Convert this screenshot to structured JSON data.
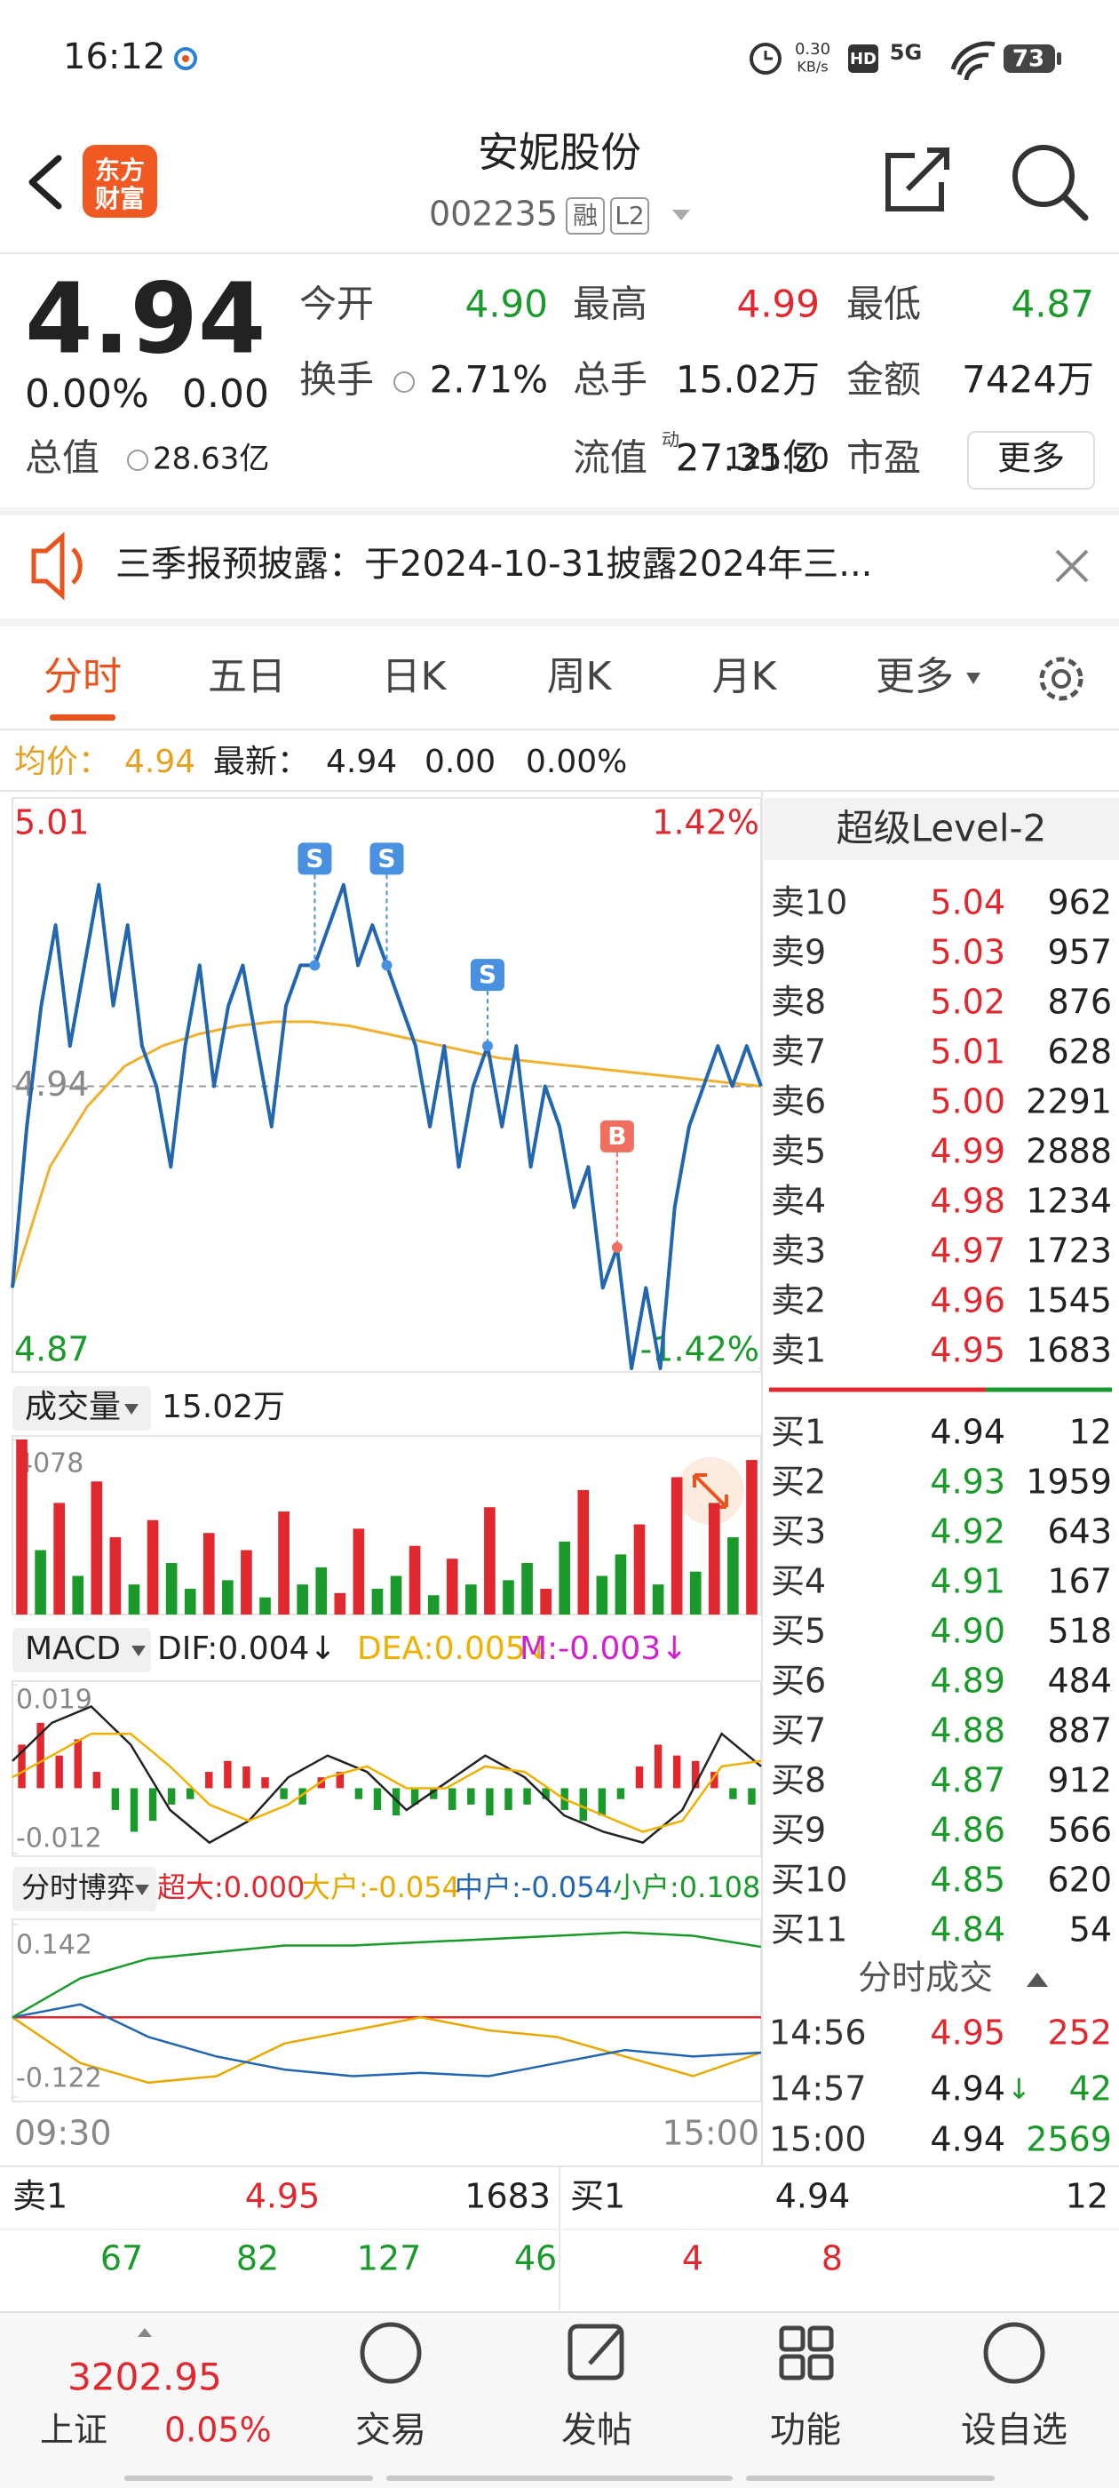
{
  "status_bar": {
    "time": "16:12",
    "net_speed": "0.30",
    "net_unit": "KB/s",
    "hd": "HD",
    "network": "5G",
    "battery": "73"
  },
  "header": {
    "logo_top": "东方",
    "logo_bottom": "财富",
    "title": "安妮股份",
    "code": "002235",
    "badges": [
      "融",
      "L2"
    ]
  },
  "quote": {
    "price": "4.94",
    "change_pct": "0.00%",
    "change": "0.00",
    "fields": [
      {
        "label": "今开",
        "value": "4.90",
        "color": "#1a9a2a"
      },
      {
        "label": "最高",
        "value": "4.99",
        "color": "#e0282e"
      },
      {
        "label": "最低",
        "value": "4.87",
        "color": "#1a9a2a"
      },
      {
        "label": "换手",
        "value": "2.71%",
        "color": "#222222"
      },
      {
        "label": "总手",
        "value": "15.02万",
        "color": "#222222"
      },
      {
        "label": "金额",
        "value": "7424万",
        "color": "#222222"
      },
      {
        "label": "总值",
        "value": "28.63亿",
        "color": "#222222"
      },
      {
        "label": "流值",
        "value": "27.35亿",
        "color": "#222222"
      },
      {
        "label": "市盈",
        "sup": "动",
        "value": "121.50",
        "color": "#222222"
      }
    ],
    "more": "更多"
  },
  "notice": {
    "text": "三季报预披露：于2024-10-31披露2024年三..."
  },
  "tabs": {
    "items": [
      "分时",
      "五日",
      "日K",
      "周K",
      "月K",
      "更多"
    ],
    "active": 0
  },
  "summary": {
    "avg_label": "均价：",
    "avg": "4.94",
    "latest_label": "最新：",
    "latest": "4.94",
    "change": "0.00",
    "change_pct": "0.00%"
  },
  "intraday": {
    "type": "line",
    "price": [
      4.89,
      4.93,
      4.96,
      4.98,
      4.95,
      4.97,
      4.99,
      4.96,
      4.98,
      4.95,
      4.94,
      4.92,
      4.95,
      4.97,
      4.94,
      4.96,
      4.97,
      4.95,
      4.93,
      4.96,
      4.97,
      4.97,
      4.98,
      4.99,
      4.97,
      4.98,
      4.97,
      4.96,
      4.95,
      4.93,
      4.95,
      4.92,
      4.94,
      4.95,
      4.93,
      4.95,
      4.92,
      4.94,
      4.93,
      4.91,
      4.92,
      4.89,
      4.9,
      4.87,
      4.89,
      4.87,
      4.91,
      4.93,
      4.94,
      4.95,
      4.94,
      4.95,
      4.94
    ],
    "average": [
      4.89,
      4.92,
      4.935,
      4.945,
      4.95,
      4.953,
      4.955,
      4.956,
      4.956,
      4.955,
      4.953,
      4.951,
      4.949,
      4.947,
      4.946,
      4.945,
      4.944,
      4.943,
      4.942,
      4.941,
      4.94
    ],
    "price_color": "#2266b0",
    "average_color": "#f0b030",
    "ylim": [
      4.87,
      5.01
    ],
    "yticks": [
      4.87,
      4.94,
      5.01
    ],
    "y2lim": [
      -1.42,
      1.42
    ],
    "y2ticks": [
      {
        "value": -1.42,
        "label": "-1.42%"
      },
      {
        "value": 1.42,
        "label": "1.42%"
      }
    ],
    "markers": [
      {
        "label": "S",
        "index": 21
      },
      {
        "label": "S",
        "index": 26
      },
      {
        "label": "S",
        "index": 33
      },
      {
        "label": "B",
        "index": 42
      }
    ],
    "time_labels": [
      "09:30",
      "15:00"
    ]
  },
  "volume": {
    "type": "bar",
    "label": "成交量",
    "total": "15.02万",
    "values": [
      4078,
      1500,
      2600,
      900,
      3100,
      1800,
      700,
      2200,
      1200,
      600,
      1900,
      800,
      1500,
      400,
      2400,
      700,
      1100,
      500,
      2000,
      600,
      900,
      1600,
      450,
      1300,
      700,
      2500,
      800,
      1200,
      600,
      1700,
      2900,
      900,
      1400,
      2100,
      700,
      3200,
      1000,
      2600,
      1800,
      3600
    ],
    "colors": [
      "#e0282e",
      "#1a9a2a",
      "#e0282e",
      "#1a9a2a",
      "#e0282e",
      "#e0282e",
      "#1a9a2a",
      "#e0282e",
      "#1a9a2a",
      "#1a9a2a",
      "#e0282e",
      "#1a9a2a",
      "#e0282e",
      "#1a9a2a",
      "#e0282e",
      "#1a9a2a",
      "#1a9a2a",
      "#e0282e",
      "#e0282e",
      "#1a9a2a",
      "#1a9a2a",
      "#e0282e",
      "#1a9a2a",
      "#e0282e",
      "#1a9a2a",
      "#e0282e",
      "#1a9a2a",
      "#1a9a2a",
      "#e0282e",
      "#1a9a2a",
      "#e0282e",
      "#1a9a2a",
      "#1a9a2a",
      "#e0282e",
      "#1a9a2a",
      "#e0282e",
      "#1a9a2a",
      "#e0282e",
      "#1a9a2a",
      "#e0282e"
    ],
    "ylim": [
      0,
      4078
    ],
    "yticks": [
      4078
    ]
  },
  "macd": {
    "type": "bar",
    "label": "MACD",
    "indicators": [
      {
        "text": "DIF:0.004↓",
        "color": "#222222"
      },
      {
        "text": "DEA:0.005↓",
        "color": "#f0b000"
      },
      {
        "text": "M:-0.003↓",
        "color": "#d020d0"
      }
    ],
    "histogram": [
      0.008,
      0.012,
      0.006,
      0.009,
      0.003,
      -0.004,
      -0.008,
      -0.006,
      -0.003,
      -0.002,
      0.003,
      0.005,
      0.004,
      0.002,
      -0.002,
      -0.003,
      0.002,
      0.003,
      -0.002,
      -0.004,
      -0.005,
      -0.003,
      -0.002,
      -0.004,
      -0.003,
      -0.005,
      -0.004,
      -0.003,
      -0.002,
      -0.004,
      -0.006,
      -0.005,
      -0.002,
      0.004,
      0.008,
      0.006,
      0.005,
      0.003,
      -0.002,
      -0.003
    ],
    "dif": [
      0.005,
      0.012,
      0.015,
      0.008,
      -0.004,
      -0.01,
      -0.006,
      0.002,
      0.006,
      0.003,
      -0.004,
      0.001,
      0.006,
      0.002,
      -0.005,
      -0.008,
      -0.01,
      -0.004,
      0.01,
      0.004
    ],
    "dea": [
      0.002,
      0.006,
      0.01,
      0.01,
      0.004,
      -0.003,
      -0.006,
      -0.003,
      0.002,
      0.004,
      0.0,
      0.0,
      0.004,
      0.003,
      -0.002,
      -0.005,
      -0.008,
      -0.006,
      0.004,
      0.005
    ],
    "dif_color": "#222222",
    "dea_color": "#f0b000",
    "ylim": [
      -0.012,
      0.019
    ],
    "yticks": [
      -0.012,
      0.019
    ]
  },
  "game": {
    "type": "line",
    "label": "分时博弈",
    "series": [
      {
        "name": "超大:0.000",
        "color": "#e0282e",
        "values": [
          0,
          0,
          0,
          0,
          0,
          0,
          0,
          0,
          0,
          0,
          0,
          0
        ]
      },
      {
        "name": "大户:-0.054",
        "color": "#e8a800",
        "values": [
          0,
          -0.07,
          -0.1,
          -0.09,
          -0.04,
          -0.02,
          0,
          -0.02,
          -0.03,
          -0.06,
          -0.09,
          -0.054
        ]
      },
      {
        "name": "中户:-0.054",
        "color": "#2266b0",
        "values": [
          0,
          0.02,
          -0.03,
          -0.06,
          -0.08,
          -0.09,
          -0.085,
          -0.09,
          -0.07,
          -0.05,
          -0.06,
          -0.054
        ]
      },
      {
        "name": "小户:0.108",
        "color": "#1a9a2a",
        "values": [
          0,
          0.06,
          0.09,
          0.1,
          0.11,
          0.11,
          0.115,
          0.12,
          0.125,
          0.13,
          0.125,
          0.108
        ]
      }
    ],
    "ylim": [
      -0.122,
      0.142
    ],
    "yticks": [
      -0.122,
      0.142
    ]
  },
  "level2": {
    "title": "超级Level-2",
    "asks": [
      {
        "label": "卖10",
        "price": "5.04",
        "volume": "962"
      },
      {
        "label": "卖9",
        "price": "5.03",
        "volume": "957"
      },
      {
        "label": "卖8",
        "price": "5.02",
        "volume": "876"
      },
      {
        "label": "卖7",
        "price": "5.01",
        "volume": "628"
      },
      {
        "label": "卖6",
        "price": "5.00",
        "volume": "2291"
      },
      {
        "label": "卖5",
        "price": "4.99",
        "volume": "2888"
      },
      {
        "label": "卖4",
        "price": "4.98",
        "volume": "1234"
      },
      {
        "label": "卖3",
        "price": "4.97",
        "volume": "1723"
      },
      {
        "label": "卖2",
        "price": "4.96",
        "volume": "1545"
      },
      {
        "label": "卖1",
        "price": "4.95",
        "volume": "1683"
      }
    ],
    "bids": [
      {
        "label": "买1",
        "price": "4.94",
        "volume": "12"
      },
      {
        "label": "买2",
        "price": "4.93",
        "volume": "1959"
      },
      {
        "label": "买3",
        "price": "4.92",
        "volume": "643"
      },
      {
        "label": "买4",
        "price": "4.91",
        "volume": "167"
      },
      {
        "label": "买5",
        "price": "4.90",
        "volume": "518"
      },
      {
        "label": "买6",
        "price": "4.89",
        "volume": "484"
      },
      {
        "label": "买7",
        "price": "4.88",
        "volume": "887"
      },
      {
        "label": "买8",
        "price": "4.87",
        "volume": "912"
      },
      {
        "label": "买9",
        "price": "4.86",
        "volume": "566"
      },
      {
        "label": "买10",
        "price": "4.85",
        "volume": "620"
      },
      {
        "label": "买11",
        "price": "4.84",
        "volume": "54"
      }
    ]
  },
  "trades": {
    "title": "分时成交",
    "rows": [
      {
        "time": "14:56",
        "price": "4.95",
        "volume": "252",
        "price_color": "#e0282e",
        "volume_color": "#e0282e"
      },
      {
        "time": "14:57",
        "price": "4.94",
        "direction": "↓",
        "volume": "42",
        "price_color": "#222222",
        "volume_color": "#1a9a2a"
      },
      {
        "time": "15:00",
        "price": "4.94",
        "volume": "2569",
        "price_color": "#222222",
        "volume_color": "#1a9a2a"
      }
    ]
  },
  "order_book": {
    "ask": {
      "label": "卖1",
      "price": "4.95",
      "volume": "1683"
    },
    "bid": {
      "label": "买1",
      "price": "4.94",
      "volume": "12"
    },
    "ask_queue": [
      "67",
      "82",
      "127",
      "46"
    ],
    "bid_queue": [
      "4",
      "8"
    ]
  },
  "nav": {
    "index_value": "3202.95",
    "index_name": "上证",
    "index_change": "0.05%",
    "items": [
      "交易",
      "发帖",
      "功能",
      "设自选"
    ]
  }
}
